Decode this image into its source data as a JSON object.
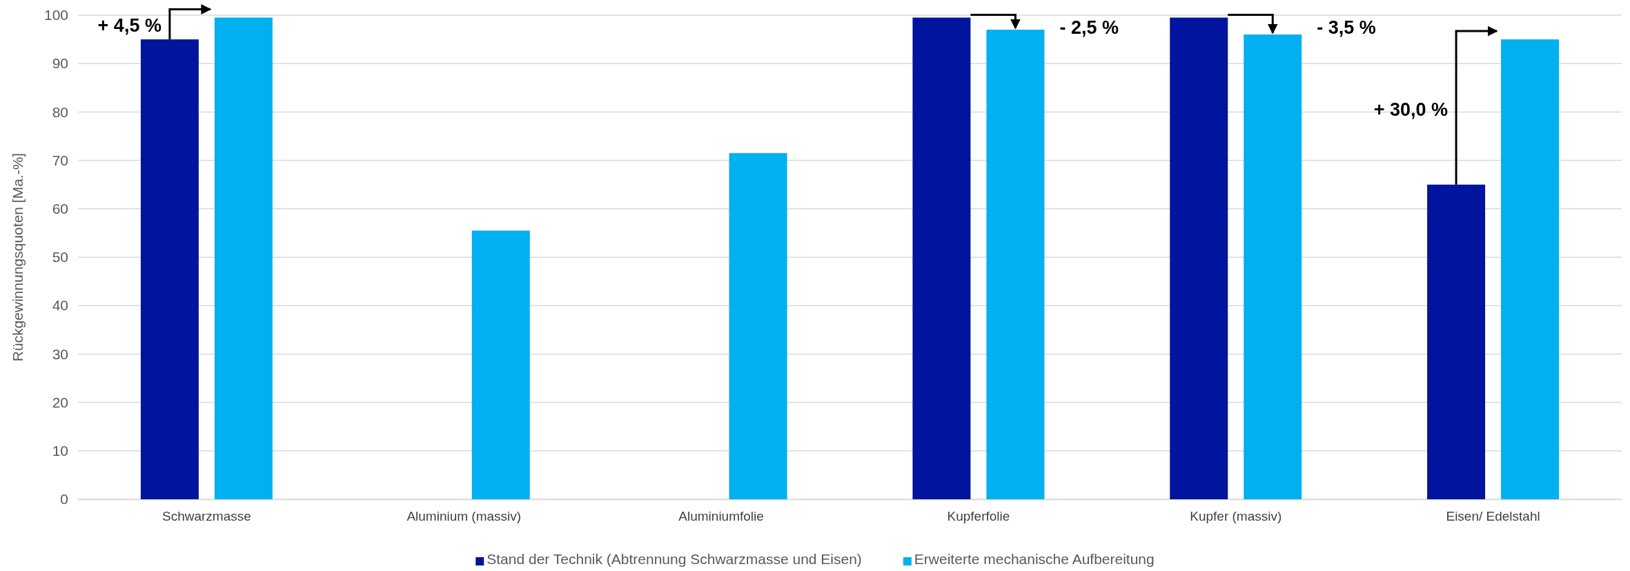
{
  "chart_data": {
    "type": "bar",
    "ylabel": "Rückgewinnungsquoten [Ma.-%]",
    "categories": [
      "Schwarzmasse",
      "Aluminium (massiv)",
      "Aluminiumfolie",
      "Kupferfolie",
      "Kupfer (massiv)",
      "Eisen/ Edelstahl"
    ],
    "series": [
      {
        "name": "Stand der Technik (Abtrennung Schwarzmasse und Eisen)",
        "color": "#00149e",
        "values": [
          95,
          null,
          null,
          99.5,
          99.5,
          65
        ]
      },
      {
        "name": "Erweiterte mechanische Aufbereitung",
        "color": "#00b0f0",
        "values": [
          99.5,
          55.5,
          71.5,
          97,
          96,
          95
        ]
      }
    ],
    "ylim": [
      0,
      100
    ],
    "yticks": [
      0,
      10,
      20,
      30,
      40,
      50,
      60,
      70,
      80,
      90,
      100
    ],
    "grid": "y",
    "legend": "bottom",
    "annotations": [
      "+ 4,5 %",
      "- 2,5 %",
      "- 3,5 %",
      "+ 30,0 %"
    ]
  }
}
